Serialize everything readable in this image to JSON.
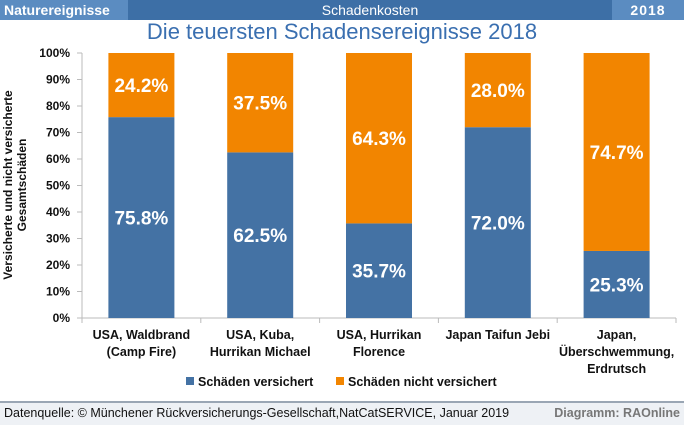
{
  "header": {
    "left": "Naturereignisse",
    "center": "Schadenkosten",
    "right": "2018"
  },
  "footer": {
    "source": "Datenquelle: © Münchener Rückversicherungs-Gesellschaft,NatCatSERVICE, Januar 2019",
    "credit": "Diagramm: RAOnline"
  },
  "chart_data": {
    "type": "bar",
    "stacked": true,
    "title": "Die teuersten Schadensereignisse 2018",
    "ylabel": [
      "Versicherte und nicht versicherte",
      "Gesamtschäden"
    ],
    "ylim": [
      0,
      100
    ],
    "yticks": [
      "0%",
      "10%",
      "20%",
      "30%",
      "40%",
      "50%",
      "60%",
      "70%",
      "80%",
      "90%",
      "100%"
    ],
    "categories": [
      [
        "USA, Waldbrand",
        "(Camp Fire)"
      ],
      [
        "USA, Kuba,",
        "Hurrikan Michael"
      ],
      [
        "USA, Hurrikan",
        "Florence"
      ],
      [
        "Japan Taifun Jebi"
      ],
      [
        "Japan,",
        "Überschwemmung,",
        "Erdrutsch"
      ]
    ],
    "series": [
      {
        "name": "Schäden versichert",
        "color": "#4472a4",
        "values": [
          75.8,
          62.5,
          35.7,
          72.0,
          25.3
        ],
        "labels": [
          "75.8%",
          "62.5%",
          "35.7%",
          "72.0%",
          "25.3%"
        ]
      },
      {
        "name": "Schäden nicht versichert",
        "color": "#f28500",
        "values": [
          24.2,
          37.5,
          64.3,
          28.0,
          74.7
        ],
        "labels": [
          "24.2%",
          "37.5%",
          "64.3%",
          "28.0%",
          "74.7%"
        ]
      }
    ],
    "legend": "bottom",
    "grid": false
  }
}
